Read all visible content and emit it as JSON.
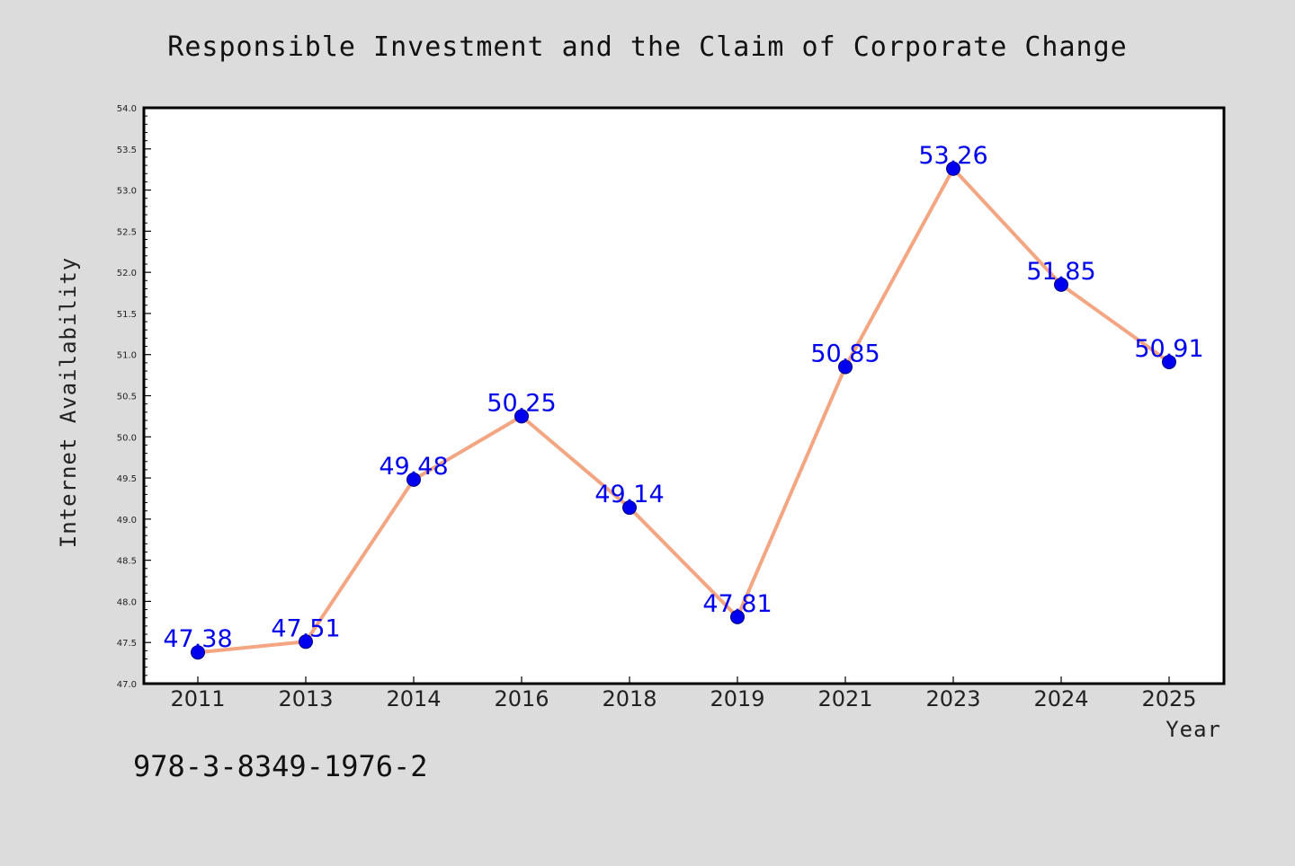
{
  "chart_data": {
    "type": "line",
    "title": "Responsible Investment and the Claim of Corporate Change",
    "xlabel": "Year",
    "ylabel": "Internet Availability",
    "categories": [
      "2011",
      "2013",
      "2014",
      "2016",
      "2018",
      "2019",
      "2021",
      "2023",
      "2024",
      "2025"
    ],
    "series": [
      {
        "values": [
          47.38,
          47.51,
          49.48,
          50.25,
          49.14,
          47.81,
          50.85,
          53.26,
          51.85,
          50.91
        ],
        "labels": [
          "47.38",
          "47.51",
          "49.48",
          "50.25",
          "49.14",
          "47.81",
          "50.85",
          "53.26",
          "51.85",
          "50.91"
        ],
        "line_color": "#f4a582",
        "marker_color": "#0000ee"
      }
    ],
    "ylim": [
      47.0,
      54.0
    ],
    "yticks": [
      "47.0",
      "47.5",
      "48.0",
      "48.5",
      "49.0",
      "49.5",
      "50.0",
      "50.5",
      "51.0",
      "51.5",
      "52.0",
      "52.5",
      "53.0",
      "53.5",
      "54.0"
    ],
    "grid": false,
    "legend": "none",
    "plot_background": "#ffffff",
    "page_background": "#dcdcdc"
  },
  "annotation": {
    "isbn": "978-3-8349-1976-2"
  }
}
